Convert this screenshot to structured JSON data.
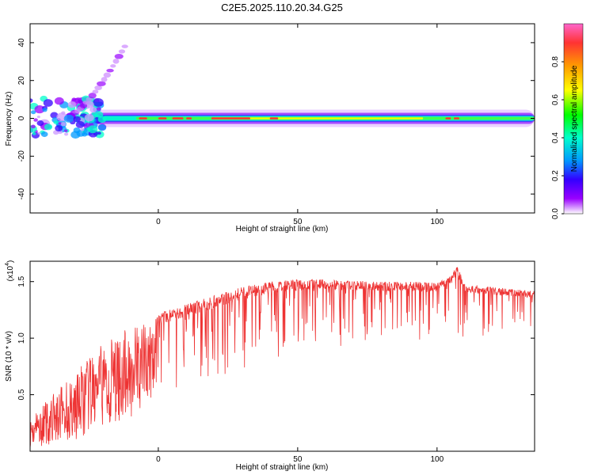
{
  "figure": {
    "title": "C2E5.2025.110.20.34.G25"
  },
  "chart_data": [
    {
      "type": "heatmap",
      "xlabel": "Height of straight line (km)",
      "ylabel": "Frequency (Hz)",
      "xlim": [
        -46,
        135
      ],
      "ylim": [
        -50,
        50
      ],
      "xticks": [
        0,
        50,
        100
      ],
      "yticks": [
        40,
        20,
        0,
        -20,
        -40
      ],
      "grid": false,
      "colorbar": {
        "label": "Normalized spectral amplitude",
        "range": [
          0.0,
          1.0
        ],
        "ticks": [
          0.0,
          0.2,
          0.4,
          0.6,
          0.8
        ],
        "colormap": [
          "#ff66cc",
          "#ff3333",
          "#ff9900",
          "#ffff00",
          "#00ff00",
          "#00ffcc",
          "#0099ff",
          "#3300ff",
          "#9900ff",
          "#ffffff"
        ]
      },
      "features": {
        "main_band_frequency_hz": 0,
        "main_band_x_range_km": [
          -46,
          135
        ],
        "rising_track_hz_start_end": [
          [
            -30,
            3
          ],
          [
            -12,
            38
          ]
        ]
      }
    },
    {
      "type": "line",
      "xlabel": "Height of straight line (km)",
      "ylabel": "SNR (10 * v/v)",
      "y_multiplier": "(x10",
      "y_multiplier_exp": "4",
      "xlim": [
        -46,
        135
      ],
      "ylim": [
        0,
        1.68
      ],
      "xticks": [
        0,
        50,
        100
      ],
      "yticks": [
        0.5,
        1.0,
        1.5
      ],
      "ytick_labels": [
        "0.5",
        "1.0",
        "1.5"
      ],
      "series": [
        {
          "color": "#ee3333",
          "envelope": {
            "x": [
              -46,
              -40,
              -30,
              -20,
              -10,
              0,
              10,
              20,
              30,
              40,
              50,
              60,
              70,
              80,
              90,
              100,
              105,
              107,
              110,
              120,
              135
            ],
            "upper": [
              0.3,
              0.45,
              0.7,
              0.95,
              1.1,
              1.22,
              1.3,
              1.38,
              1.45,
              1.5,
              1.52,
              1.52,
              1.51,
              1.5,
              1.5,
              1.49,
              1.55,
              1.65,
              1.48,
              1.45,
              1.42
            ],
            "lower": [
              0.03,
              0.05,
              0.1,
              0.2,
              0.3,
              0.45,
              0.55,
              0.6,
              0.7,
              0.8,
              0.85,
              0.9,
              0.92,
              0.95,
              0.97,
              0.98,
              1.0,
              1.05,
              1.0,
              1.0,
              1.0
            ]
          }
        }
      ]
    }
  ],
  "colors": {
    "line": "#ee3333",
    "axis": "#000000"
  }
}
